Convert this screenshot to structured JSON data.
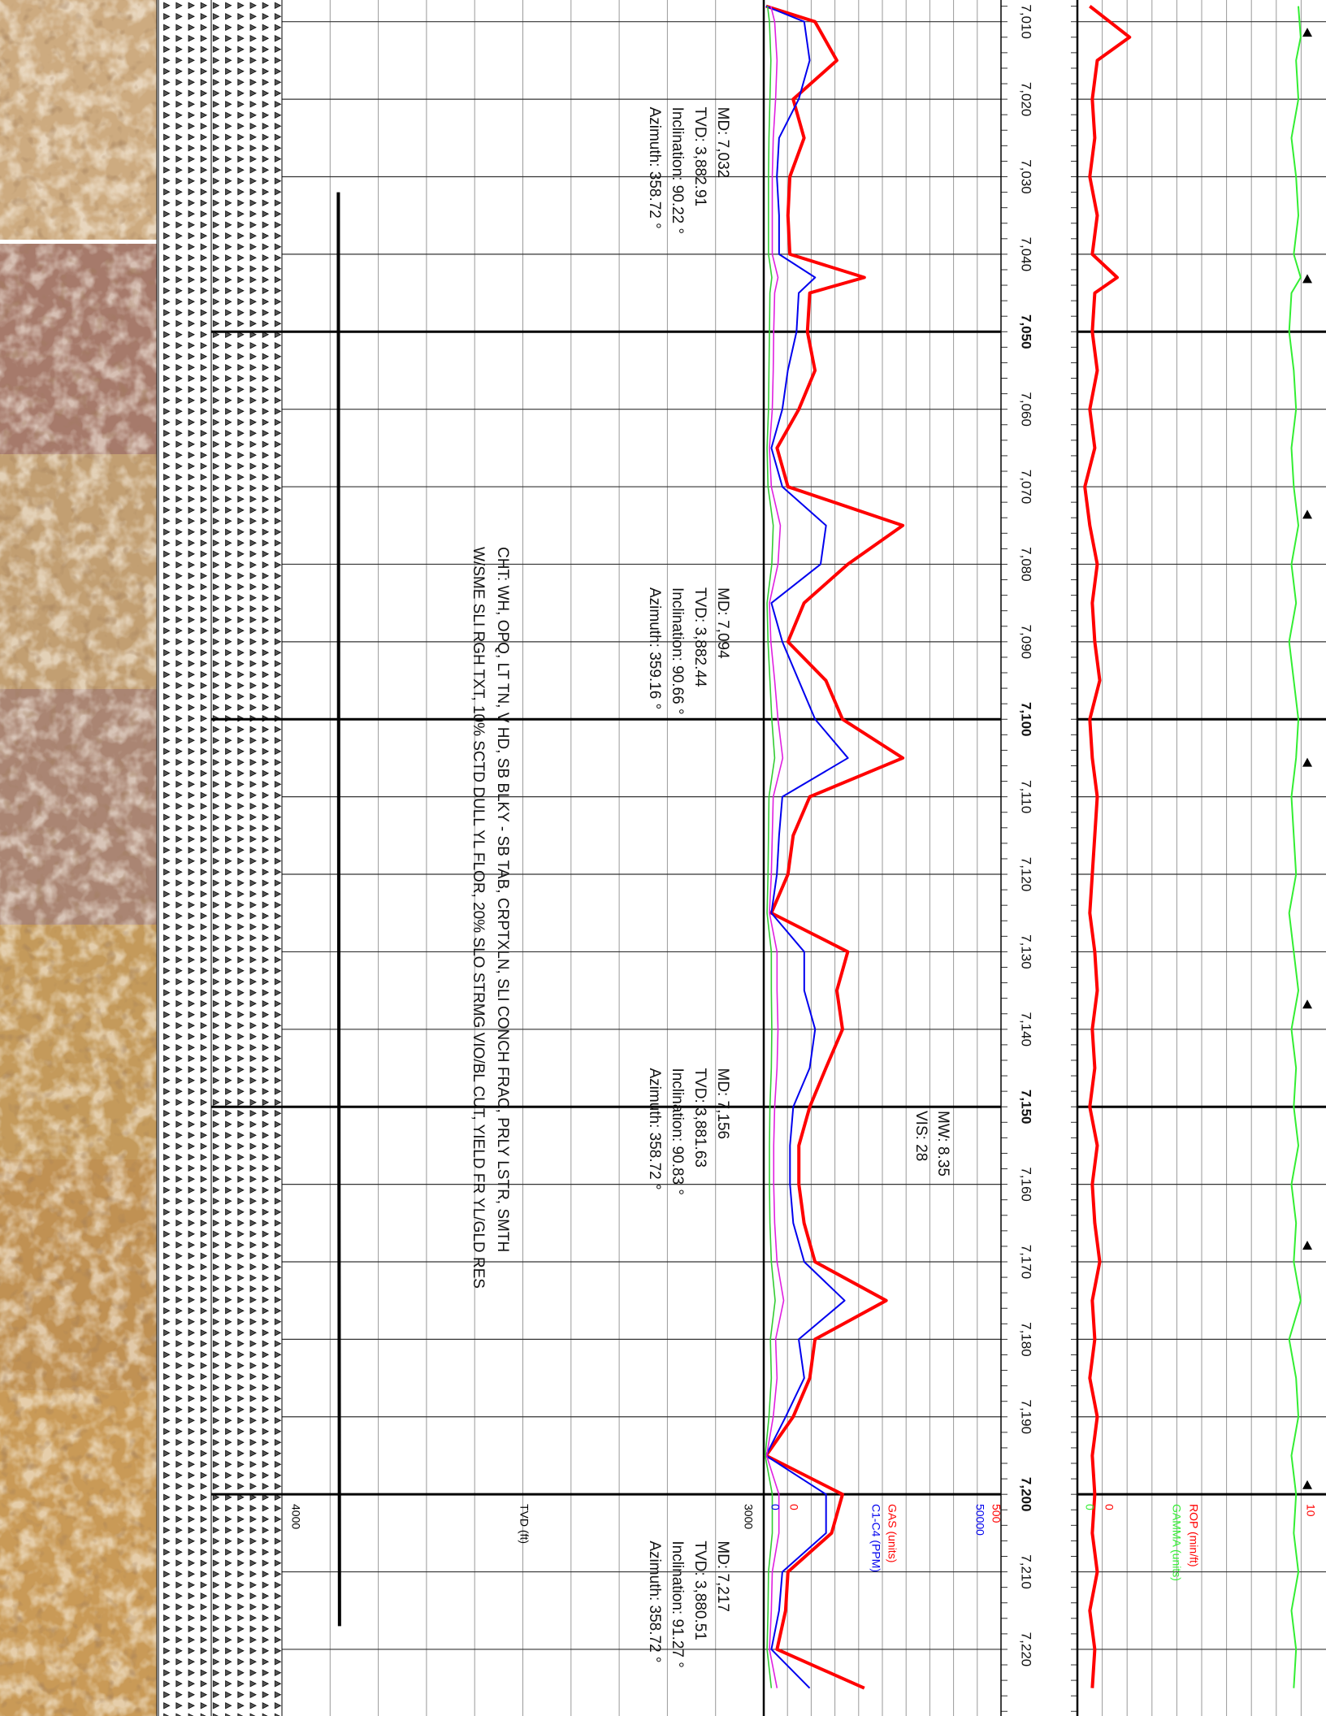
{
  "chart_data": [
    {
      "type": "line",
      "xlim": [
        7007.2,
        7228.6
      ],
      "xticks": [
        {
          "value": 7010,
          "label": "7,010"
        },
        {
          "value": 7020,
          "label": "7,020"
        },
        {
          "value": 7030,
          "label": "7,030"
        },
        {
          "value": 7040,
          "label": "7,040"
        },
        {
          "value": 7050,
          "label": "7,050"
        },
        {
          "value": 7060,
          "label": "7,060"
        },
        {
          "value": 7070,
          "label": "7,070"
        },
        {
          "value": 7080,
          "label": "7,080"
        },
        {
          "value": 7090,
          "label": "7,090"
        },
        {
          "value": 7100,
          "label": "7,100"
        },
        {
          "value": 7110,
          "label": "7,110"
        },
        {
          "value": 7120,
          "label": "7,120"
        },
        {
          "value": 7130,
          "label": "7,130"
        },
        {
          "value": 7140,
          "label": "7,140"
        },
        {
          "value": 7150,
          "label": "7,150"
        },
        {
          "value": 7160,
          "label": "7,160"
        },
        {
          "value": 7170,
          "label": "7,170"
        },
        {
          "value": 7180,
          "label": "7,180"
        },
        {
          "value": 7190,
          "label": "7,190"
        },
        {
          "value": 7200,
          "label": "7,200"
        },
        {
          "value": 7210,
          "label": "7,210"
        },
        {
          "value": 7220,
          "label": "7,220"
        }
      ],
      "x": [
        7008,
        7010,
        7015,
        7020,
        7025,
        7030,
        7035,
        7040,
        7043,
        7045,
        7050,
        7055,
        7060,
        7065,
        7070,
        7075,
        7080,
        7085,
        7090,
        7095,
        7100,
        7105,
        7110,
        7115,
        7120,
        7125,
        7130,
        7135,
        7140,
        7145,
        7150,
        7155,
        7160,
        7165,
        7170,
        7175,
        7180,
        7185,
        7190,
        7195,
        7200,
        7205,
        7210,
        7215,
        7220,
        7225
      ],
      "series": [
        {
          "name": "GAS (units)",
          "color": "#ff0000",
          "values": [
            5,
            108,
            154,
            62,
            85,
            55,
            51,
            55,
            212,
            97,
            92,
            108,
            74,
            28,
            51,
            293,
            177,
            85,
            51,
            131,
            166,
            293,
            97,
            62,
            51,
            16,
            177,
            154,
            166,
            131,
            97,
            74,
            74,
            85,
            108,
            258,
            108,
            97,
            62,
            5,
            166,
            143,
            51,
            46,
            28,
            212
          ]
        },
        {
          "name": "C1-C4 (PPM)",
          "color": "#0000ee",
          "axis": "y2",
          "values": [
            460,
            8530,
            9680,
            7370,
            3230,
            2770,
            3230,
            3230,
            10830,
            7370,
            6910,
            5070,
            3920,
            1610,
            3920,
            13130,
            11980,
            1610,
            3920,
            7370,
            10830,
            17740,
            3920,
            3230,
            2770,
            1610,
            8530,
            8530,
            10830,
            9680,
            6220,
            5530,
            5530,
            6220,
            8530,
            17050,
            7370,
            8530,
            4610,
            460,
            13130,
            13130,
            3920,
            3230,
            1610,
            9680
          ]
        },
        {
          "color": "#e020e0",
          "axis": "y2",
          "values": [
            1500,
            2300,
            2800,
            2500,
            2000,
            1800,
            1800,
            1800,
            3000,
            2300,
            2100,
            2000,
            1800,
            1200,
            1600,
            3500,
            3000,
            1200,
            1500,
            2300,
            3000,
            4000,
            2000,
            1800,
            1600,
            1200,
            2800,
            2800,
            3000,
            2800,
            2300,
            2100,
            2100,
            2300,
            2800,
            4200,
            2500,
            2800,
            2000,
            600,
            3200,
            3200,
            1800,
            1600,
            1200,
            2800
          ]
        },
        {
          "color": "#33cc33",
          "axis": "y2",
          "values": [
            800,
            1200,
            1500,
            1300,
            1100,
            1000,
            1000,
            1000,
            1700,
            1300,
            1200,
            1100,
            1000,
            700,
            900,
            2000,
            1700,
            700,
            900,
            1300,
            1700,
            2300,
            1100,
            1000,
            900,
            700,
            1600,
            1600,
            1700,
            1600,
            1300,
            1200,
            1200,
            1300,
            1600,
            2400,
            1400,
            1600,
            1100,
            300,
            1800,
            1800,
            1000,
            900,
            700,
            1600
          ]
        }
      ],
      "ylim": [
        0,
        500
      ],
      "yticks": [
        0,
        500
      ],
      "y2lim": [
        0,
        50000
      ],
      "y2ticks": [
        0,
        50000
      ]
    },
    {
      "type": "line",
      "xlim": [
        7007.2,
        7228.6
      ],
      "x": [
        7032,
        7094,
        7156,
        7217
      ],
      "series": [
        {
          "name": "TVD (ft)",
          "color": "#000000",
          "values": [
            3882.91,
            3882.44,
            3881.63,
            3880.51
          ]
        }
      ],
      "ylim": [
        3000,
        4000
      ],
      "yticks": [
        3000,
        4000
      ],
      "reversed": true
    },
    {
      "type": "line",
      "xlim": [
        7007.2,
        7228.6
      ],
      "x": [
        7008,
        7012,
        7015,
        7020,
        7025,
        7030,
        7035,
        7040,
        7043,
        7045,
        7050,
        7055,
        7060,
        7065,
        7070,
        7075,
        7080,
        7085,
        7090,
        7095,
        7100,
        7105,
        7110,
        7115,
        7120,
        7125,
        7130,
        7135,
        7140,
        7145,
        7150,
        7155,
        7160,
        7165,
        7170,
        7175,
        7180,
        7185,
        7190,
        7195,
        7200,
        7205,
        7210,
        7215,
        7220,
        7225
      ],
      "series": [
        {
          "name": "ROP (min/ft)",
          "color": "#ff0000",
          "values": [
            0.5,
            2.1,
            0.8,
            0.6,
            0.7,
            0.5,
            0.8,
            0.6,
            1.6,
            0.7,
            0.6,
            0.8,
            0.5,
            0.7,
            0.3,
            0.5,
            0.8,
            0.6,
            0.7,
            0.9,
            0.5,
            0.6,
            0.8,
            0.7,
            0.6,
            0.5,
            0.7,
            0.8,
            0.6,
            0.7,
            0.5,
            0.8,
            0.6,
            0.7,
            0.9,
            0.6,
            0.7,
            0.5,
            0.8,
            0.6,
            0.7,
            0.6,
            0.8,
            0.5,
            0.7,
            0.6
          ]
        },
        {
          "name": "GAMMA (units)",
          "color": "#33ee33",
          "axis": "y2",
          "values": [
            96,
            97,
            95,
            96,
            93,
            95,
            96,
            94,
            97,
            93,
            92,
            94,
            95,
            93,
            94,
            96,
            93,
            95,
            92,
            94,
            96,
            95,
            93,
            94,
            95,
            92,
            94,
            96,
            93,
            95,
            94,
            96,
            93,
            95,
            94,
            97,
            92,
            95,
            96,
            93,
            95,
            94,
            96,
            93,
            95,
            94
          ]
        }
      ],
      "ylim": [
        0,
        10
      ],
      "yticks": [
        0,
        10
      ],
      "y2lim": [
        0,
        108
      ],
      "y2ticks": [
        0
      ],
      "markers": [
        7011.4,
        7043.2,
        7073.6,
        7105.6,
        7136.8,
        7167.9,
        7198.8
      ]
    }
  ],
  "surveys": [
    {
      "md": "MD: 7,032",
      "tvd": "TVD: 3,882.91",
      "inclination": "Inclination: 90.22 °",
      "azimuth": "Azimuth: 358.72 °"
    },
    {
      "md": "MD: 7,094",
      "tvd": "TVD: 3,882.44",
      "inclination": "Inclination: 90.66 °",
      "azimuth": "Azimuth: 359.16 °"
    },
    {
      "md": "MD: 7,156",
      "tvd": "TVD: 3,881.63",
      "inclination": "Inclination: 90.83 °",
      "azimuth": "Azimuth: 358.72 °"
    },
    {
      "md": "MD: 7,217",
      "tvd": "TVD: 3,880.51",
      "inclination": "Inclination: 91.27 °",
      "azimuth": "Azimuth: 358.72 °"
    }
  ],
  "mud": {
    "mw": "MW: 8.35",
    "vis": "VIS: 28"
  },
  "description": [
    "CHT: WH, OPQ, LT TN, V HD, SB BLKY - SB TAB, CRPTXLN, SLI CONCH FRAC, PRLY LSTR, SMTH",
    "W/SME SLI RGH TXT, 10% SCTD DULL YL FLOR, 20% SLO STRMG VIO/BL CUT, YIELD FR YL/GLD RES"
  ]
}
